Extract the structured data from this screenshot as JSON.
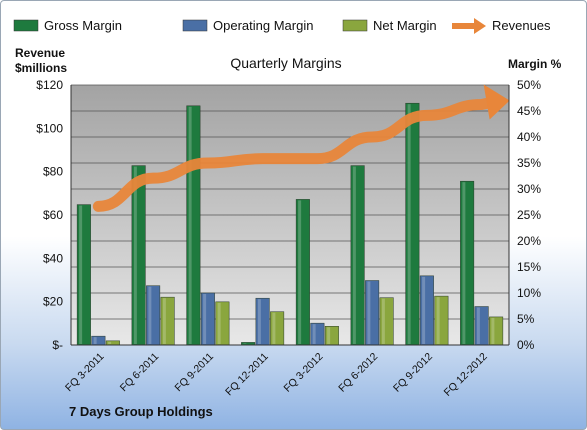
{
  "chart_data": {
    "type": "bar",
    "title": "Quarterly Margins",
    "company": "7 Days Group Holdings",
    "ylabel_left": [
      "Revenue",
      "$millions"
    ],
    "ylabel_right": "Margin %",
    "ylim_left": [
      0,
      120
    ],
    "ylim_right": [
      0,
      50
    ],
    "left_ticks": [
      "$-",
      "$20",
      "$40",
      "$60",
      "$80",
      "$100",
      "$120"
    ],
    "right_ticks": [
      "0%",
      "5%",
      "10%",
      "15%",
      "20%",
      "25%",
      "30%",
      "35%",
      "40%",
      "45%",
      "50%"
    ],
    "categories": [
      "FQ 3-2011",
      "FQ 6-2011",
      "FQ 9-2011",
      "FQ 12-2011",
      "FQ 3-2012",
      "FQ 6-2012",
      "FQ 9-2012",
      "FQ 12-2012"
    ],
    "series": [
      {
        "name": "Gross Margin",
        "axis": "right",
        "color": "#1e7a3e",
        "values": [
          27,
          34.5,
          46,
          0.5,
          28,
          34.5,
          46.5,
          31.5
        ]
      },
      {
        "name": "Operating Margin",
        "axis": "right",
        "color": "#4a6fa5",
        "values": [
          1.7,
          11.4,
          10,
          9,
          4.2,
          12.4,
          13.3,
          7.4
        ]
      },
      {
        "name": "Net Margin",
        "axis": "right",
        "color": "#8aa63e",
        "values": [
          0.8,
          9.2,
          8.3,
          6.4,
          3.6,
          9.1,
          9.4,
          5.4
        ]
      },
      {
        "name": "Revenues",
        "axis": "left",
        "type": "line",
        "color": "#e8863a",
        "values": [
          64,
          77,
          84,
          86,
          86,
          96,
          106,
          111
        ]
      }
    ],
    "grid": true,
    "legend_position": "top"
  }
}
